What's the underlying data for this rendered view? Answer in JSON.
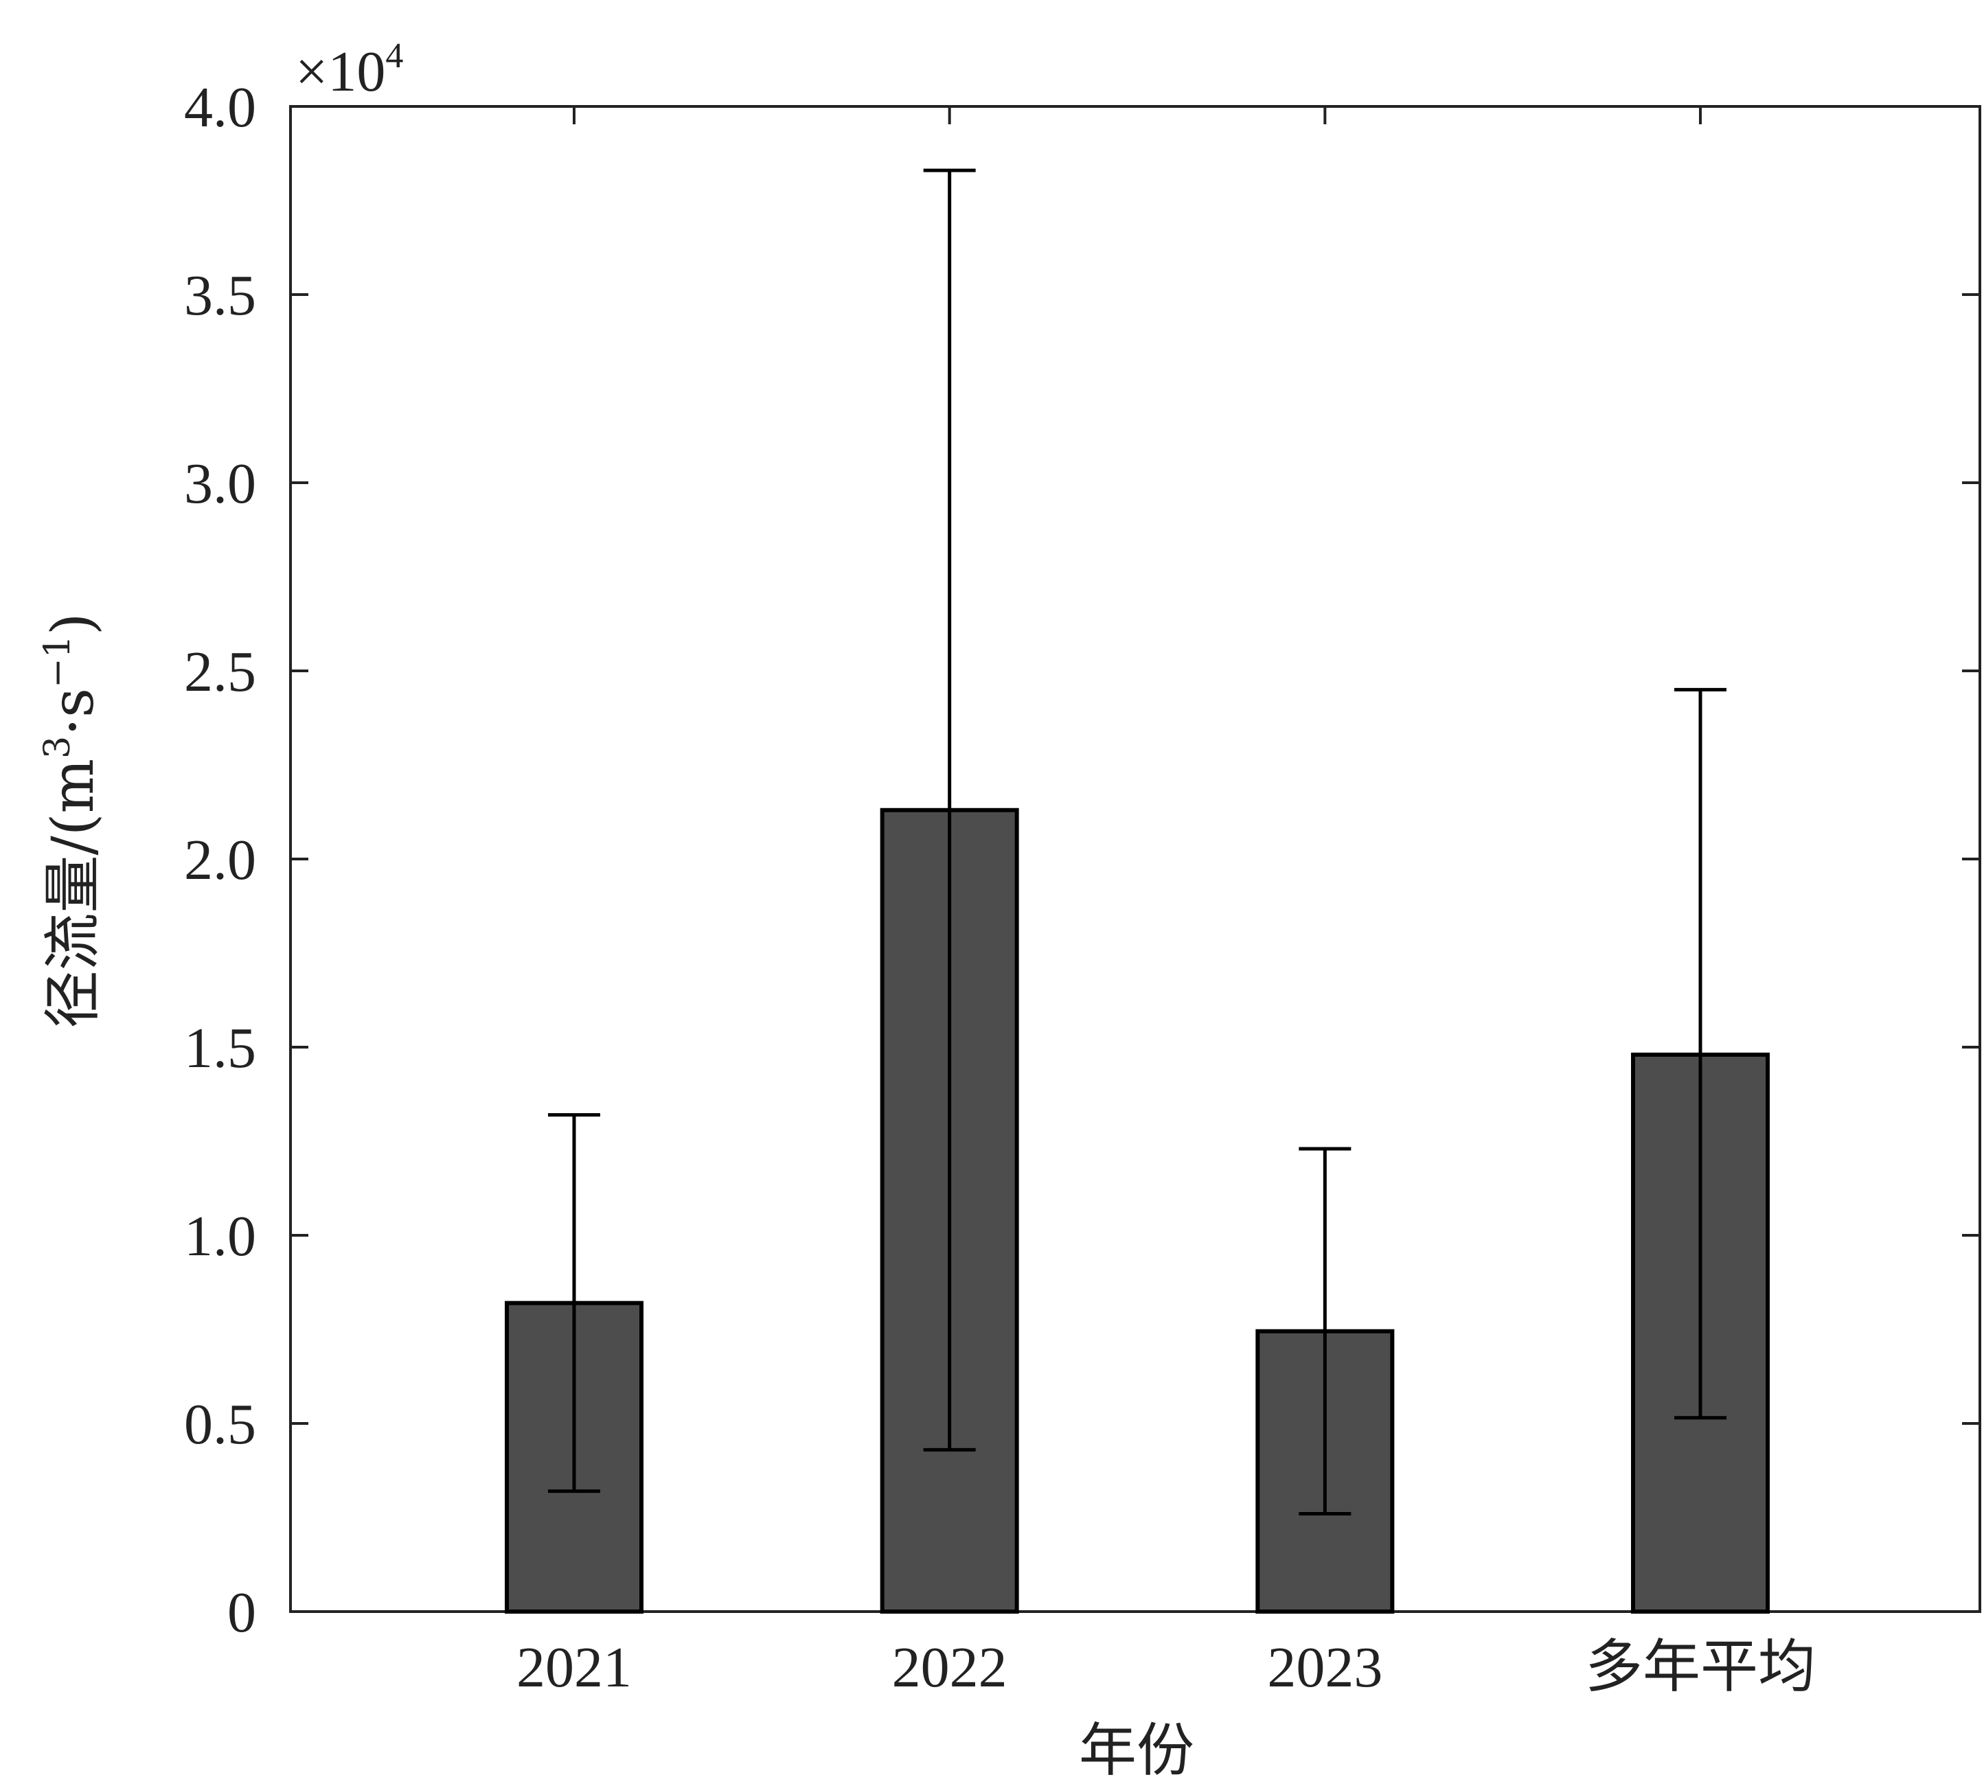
{
  "chart_data": {
    "type": "bar",
    "categories": [
      "2021",
      "2022",
      "2023",
      "多年平均"
    ],
    "values": [
      0.82,
      2.13,
      0.745,
      1.48
    ],
    "error_upper": [
      1.32,
      3.83,
      1.23,
      2.45
    ],
    "error_lower": [
      0.32,
      0.43,
      0.26,
      0.515
    ],
    "xlabel": "年份",
    "ylabel_main": "径流量/(m",
    "ylabel_sup1": "3",
    "ylabel_mid": "·s",
    "ylabel_sup2": "−1",
    "ylabel_end": ")",
    "ylim": [
      0,
      4.0
    ],
    "yticks": [
      0,
      0.5,
      1.0,
      1.5,
      2.0,
      2.5,
      3.0,
      3.5,
      4.0
    ],
    "ytick_labels": [
      "0",
      "0.5",
      "1.0",
      "1.5",
      "2.0",
      "2.5",
      "3.0",
      "3.5",
      "4.0"
    ],
    "multiplier_base": "×10",
    "multiplier_exp": "4",
    "bar_color": "#4d4d4d",
    "grid": false,
    "box": true
  }
}
